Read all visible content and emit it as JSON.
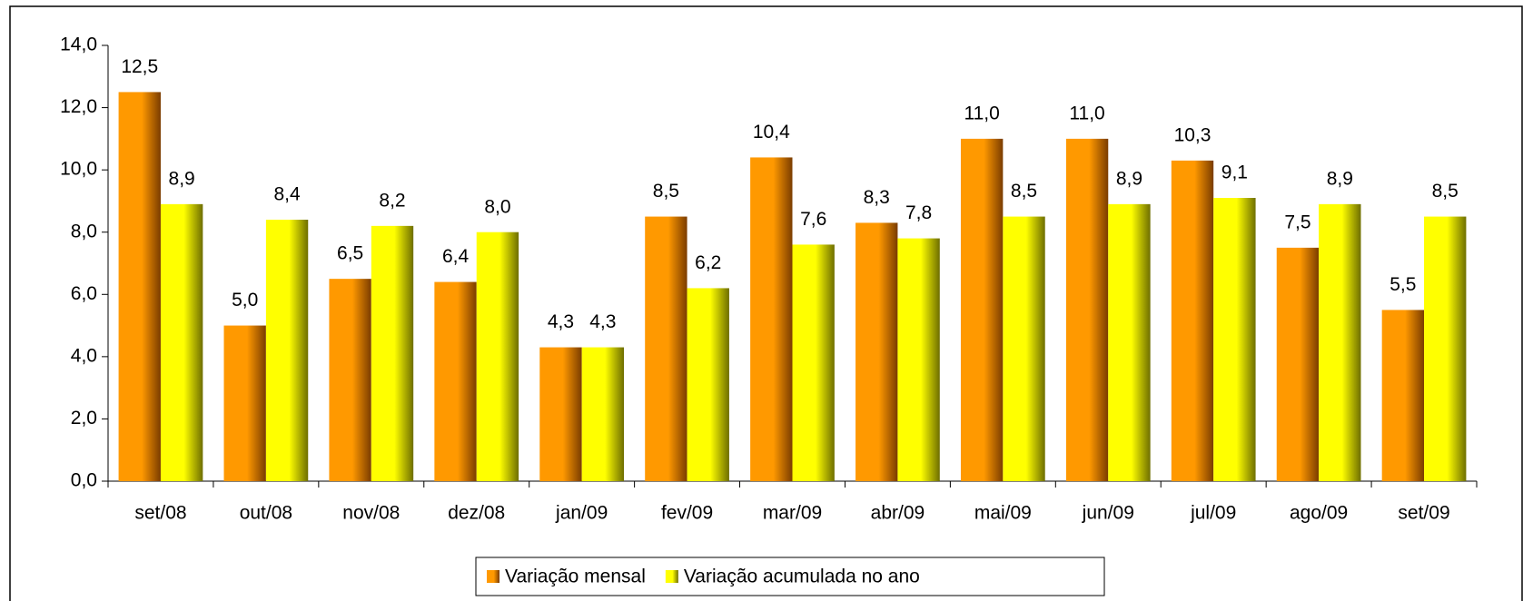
{
  "chart_data": {
    "type": "bar",
    "categories": [
      "set/08",
      "out/08",
      "nov/08",
      "dez/08",
      "jan/09",
      "fev/09",
      "mar/09",
      "abr/09",
      "mai/09",
      "jun/09",
      "jul/09",
      "ago/09",
      "set/09"
    ],
    "series": [
      {
        "name": "Variação mensal",
        "color": "#ff9900",
        "values": [
          12.5,
          5.0,
          6.5,
          6.4,
          4.3,
          8.5,
          10.4,
          8.3,
          11.0,
          11.0,
          10.3,
          7.5,
          5.5
        ],
        "value_labels": [
          "12,5",
          "5,0",
          "6,5",
          "6,4",
          "4,3",
          "8,5",
          "10,4",
          "8,3",
          "11,0",
          "11,0",
          "10,3",
          "7,5",
          "5,5"
        ]
      },
      {
        "name": "Variação acumulada no ano",
        "color": "#ffff00",
        "values": [
          8.9,
          8.4,
          8.2,
          8.0,
          4.3,
          6.2,
          7.6,
          7.8,
          8.5,
          8.9,
          9.1,
          8.9,
          8.5
        ],
        "value_labels": [
          "8,9",
          "8,4",
          "8,2",
          "8,0",
          "4,3",
          "6,2",
          "7,6",
          "7,8",
          "8,5",
          "8,9",
          "9,1",
          "8,9",
          "8,5"
        ]
      }
    ],
    "ylim": [
      0,
      14
    ],
    "yticks": [
      {
        "value": 0,
        "label": "0,0"
      },
      {
        "value": 2,
        "label": "2,0"
      },
      {
        "value": 4,
        "label": "4,0"
      },
      {
        "value": 6,
        "label": "6,0"
      },
      {
        "value": 8,
        "label": "8,0"
      },
      {
        "value": 10,
        "label": "10,0"
      },
      {
        "value": 12,
        "label": "12,0"
      },
      {
        "value": 14,
        "label": "14,0"
      }
    ],
    "legend": "bottom"
  }
}
